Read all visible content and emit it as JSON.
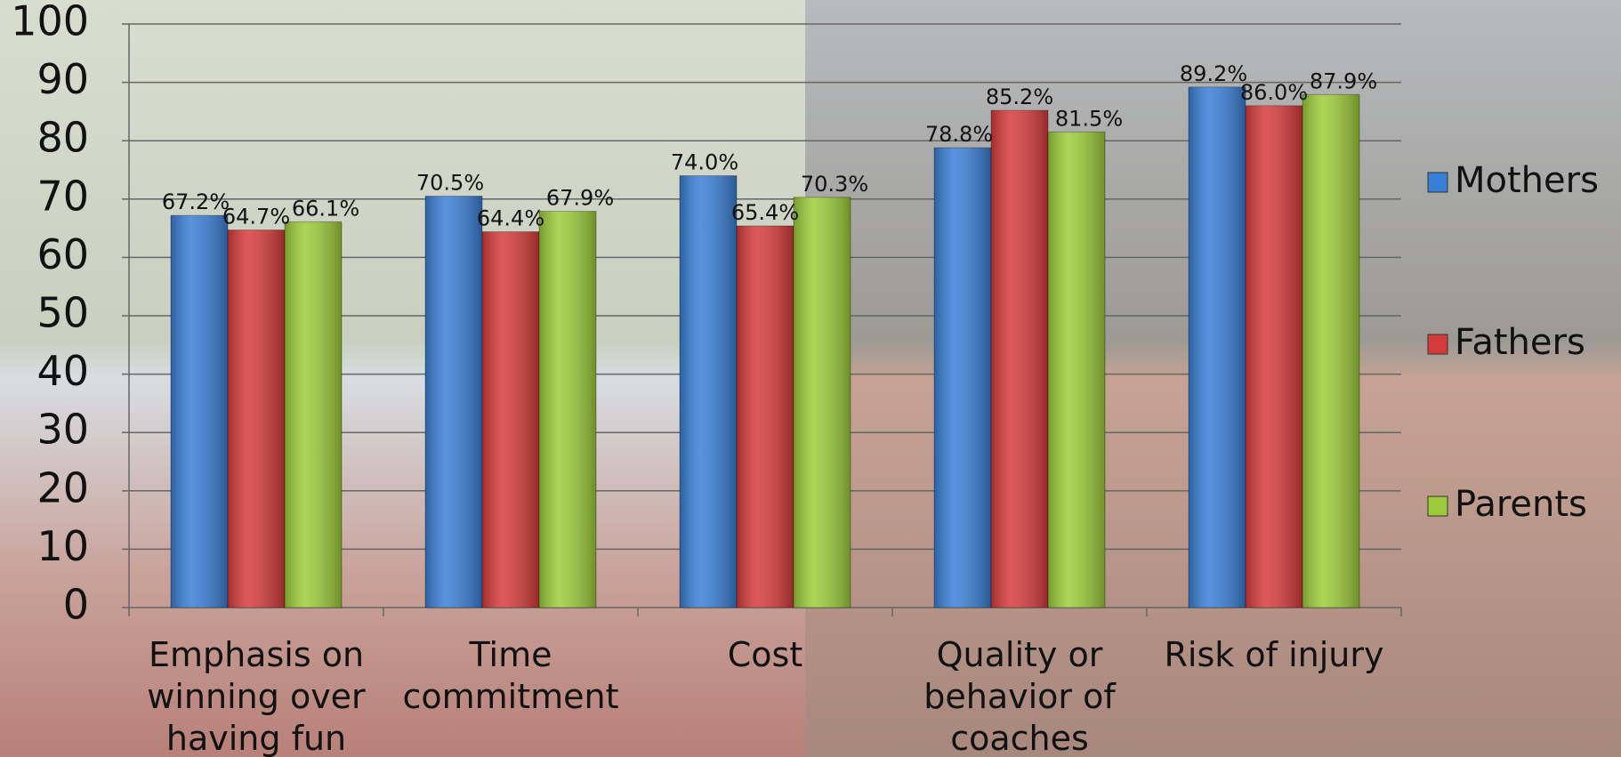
{
  "chart_data": {
    "type": "bar",
    "categories": [
      "Emphasis on winning over having fun",
      "Time commitment",
      "Cost",
      "Quality or behavior of coaches",
      "Risk of injury"
    ],
    "series": [
      {
        "name": "Mothers",
        "color": "#3a7fd6",
        "values": [
          67.2,
          70.5,
          74.0,
          78.8,
          89.2
        ],
        "value_labels": [
          "67.2%",
          "70.5%",
          "74.0%",
          "78.8%",
          "89.2%"
        ]
      },
      {
        "name": "Fathers",
        "color": "#d63b3b",
        "values": [
          64.7,
          64.4,
          65.4,
          85.2,
          86.0
        ],
        "value_labels": [
          "64.7%",
          "64.4%",
          "65.4%",
          "85.2%",
          "86.0%"
        ]
      },
      {
        "name": "Parents",
        "color": "#9dcc3a",
        "values": [
          66.1,
          67.9,
          70.3,
          81.5,
          87.9
        ],
        "value_labels": [
          "66.1%",
          "67.9%",
          "70.3%",
          "81.5%",
          "87.9%"
        ]
      }
    ],
    "ylim": [
      0,
      100
    ],
    "yticks": [
      0,
      10,
      20,
      30,
      40,
      50,
      60,
      70,
      80,
      90,
      100
    ],
    "grid": true,
    "legend": "right"
  }
}
